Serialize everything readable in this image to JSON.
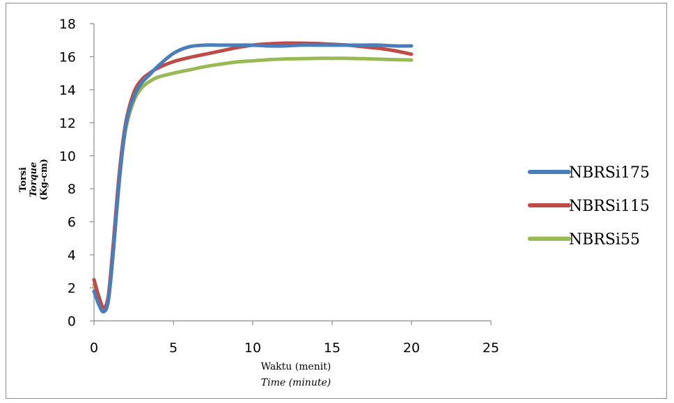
{
  "chart_data": {
    "type": "line",
    "xlabel": "Waktu (menit)",
    "xlabel_secondary": "Time (minute)",
    "ylabel_lines": [
      "Torsi",
      "Torque",
      "(Kg-cm)"
    ],
    "xlim": [
      0,
      25
    ],
    "ylim": [
      0,
      18
    ],
    "x_ticks": [
      0,
      5,
      10,
      15,
      20,
      25
    ],
    "y_ticks": [
      0,
      2,
      4,
      6,
      8,
      10,
      12,
      14,
      16,
      18
    ],
    "grid": false,
    "legend_position": "right",
    "series": [
      {
        "name": "NBRSi175",
        "color": "#4a7ebb",
        "x": [
          0,
          0.3,
          0.6,
          0.9,
          1.2,
          1.6,
          2.0,
          2.5,
          3.0,
          3.5,
          4.0,
          5.0,
          6.0,
          7.0,
          8.0,
          9.0,
          10.0,
          11.0,
          12.0,
          13.0,
          14.0,
          15.0,
          16.0,
          17.0,
          18.0,
          19.0,
          20.0
        ],
        "y": [
          1.8,
          1.0,
          0.55,
          1.2,
          4.0,
          8.5,
          11.8,
          13.5,
          14.4,
          14.9,
          15.4,
          16.2,
          16.6,
          16.7,
          16.7,
          16.7,
          16.7,
          16.65,
          16.65,
          16.7,
          16.7,
          16.7,
          16.7,
          16.7,
          16.7,
          16.65,
          16.65
        ]
      },
      {
        "name": "NBRSi115",
        "color": "#be4b48",
        "x": [
          0,
          0.3,
          0.6,
          0.9,
          1.2,
          1.6,
          2.0,
          2.5,
          3.0,
          3.5,
          4.0,
          5.0,
          6.0,
          7.0,
          8.0,
          9.0,
          10.0,
          11.0,
          12.0,
          13.0,
          14.0,
          15.0,
          16.0,
          17.0,
          18.0,
          19.0,
          20.0
        ],
        "y": [
          2.5,
          1.5,
          0.8,
          1.5,
          4.5,
          9.0,
          12.0,
          13.8,
          14.6,
          15.0,
          15.3,
          15.7,
          15.95,
          16.15,
          16.35,
          16.55,
          16.7,
          16.78,
          16.82,
          16.82,
          16.8,
          16.75,
          16.7,
          16.6,
          16.5,
          16.35,
          16.15
        ]
      },
      {
        "name": "NBRSi55",
        "color": "#98b954",
        "x": [
          0,
          0.3,
          0.6,
          0.9,
          1.2,
          1.6,
          2.0,
          2.5,
          3.0,
          3.5,
          4.0,
          5.0,
          6.0,
          7.0,
          8.0,
          9.0,
          10.0,
          11.0,
          12.0,
          13.0,
          14.0,
          15.0,
          16.0,
          17.0,
          18.0,
          19.0,
          20.0
        ],
        "y": [
          2.2,
          1.2,
          0.7,
          1.4,
          4.2,
          8.7,
          11.6,
          13.3,
          14.1,
          14.5,
          14.75,
          15.0,
          15.2,
          15.4,
          15.55,
          15.68,
          15.75,
          15.82,
          15.86,
          15.88,
          15.9,
          15.9,
          15.9,
          15.88,
          15.85,
          15.82,
          15.8
        ]
      }
    ]
  }
}
